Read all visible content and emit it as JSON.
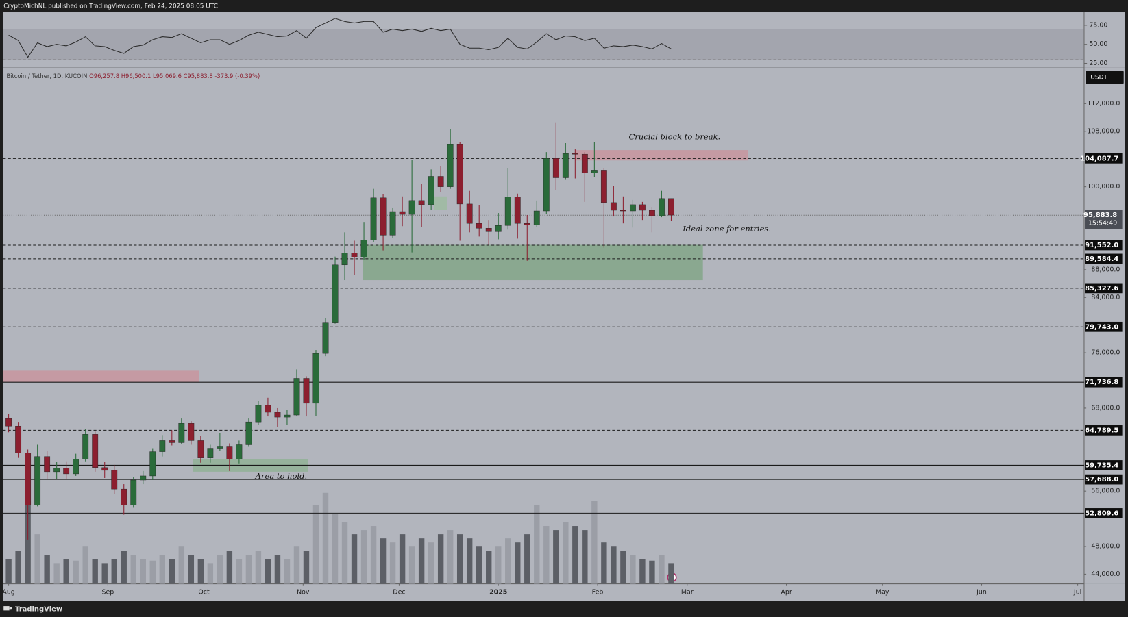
{
  "header": {
    "publisher": "CryptoMichNL published on TradingView.com, Feb 24, 2025 08:05 UTC",
    "footer": "TradingView"
  },
  "chart_data": [
    {
      "type": "line",
      "color": "#2b2b2b",
      "ylim": [
        19.3,
        92
      ],
      "yticks": [
        {
          "value": 25,
          "label": "25.00"
        },
        {
          "value": 50,
          "label": "50.00"
        },
        {
          "value": 75,
          "label": "75.00"
        }
      ],
      "bands": [
        30,
        70
      ],
      "values": [
        62,
        55,
        33,
        52,
        47,
        50,
        48,
        53,
        60,
        48,
        47,
        42,
        38,
        47,
        49,
        56,
        60,
        59,
        64,
        58,
        52,
        56,
        56,
        50,
        55,
        62,
        66,
        63,
        60,
        61,
        68,
        58,
        72,
        78,
        84,
        80,
        78,
        80,
        80,
        66,
        70,
        68,
        70,
        67,
        71,
        68,
        70,
        50,
        45,
        45,
        43,
        46,
        58,
        46,
        44,
        53,
        64,
        56,
        61,
        60,
        55,
        58,
        45,
        48,
        47,
        49,
        47,
        44,
        51,
        44
      ]
    },
    {
      "type": "candlestick",
      "symbol": "Bitcoin / Tether, 1D, KUCOIN",
      "ohlc_label": "O96,257.8 H96,500.1 L95,069.6 C95,883.8 -373.9 (-0.39%)",
      "currency": "USDT",
      "up_color": "#2a6b3a",
      "down_color": "#8c1f2f",
      "xlim": [
        -1.8,
        336
      ],
      "ylim": [
        42600,
        117100
      ],
      "xticks": [
        {
          "value": 0,
          "label": "Aug"
        },
        {
          "value": 31,
          "label": "Sep"
        },
        {
          "value": 61,
          "label": "Oct"
        },
        {
          "value": 92,
          "label": "Nov"
        },
        {
          "value": 122,
          "label": "Dec"
        },
        {
          "value": 153,
          "label": "2025"
        },
        {
          "value": 184,
          "label": "Feb"
        },
        {
          "value": 212,
          "label": "Mar"
        },
        {
          "value": 243,
          "label": "Apr"
        },
        {
          "value": 273,
          "label": "May"
        },
        {
          "value": 304,
          "label": "Jun"
        },
        {
          "value": 334,
          "label": "Jul"
        }
      ],
      "yticks": [
        {
          "value": 44000,
          "label": "44,000.0"
        },
        {
          "value": 48000,
          "label": "48,000.0"
        },
        {
          "value": 56000,
          "label": "56,000.0"
        },
        {
          "value": 68000,
          "label": "68,000.0"
        },
        {
          "value": 76000,
          "label": "76,000.0"
        },
        {
          "value": 84000,
          "label": "84,000.0"
        },
        {
          "value": 88000,
          "label": "88,000.0"
        },
        {
          "value": 100000,
          "label": "100,000.0"
        },
        {
          "value": 108000,
          "label": "108,000.0"
        },
        {
          "value": 112000,
          "label": "112,000.0"
        }
      ],
      "last_price": {
        "value": 95883.8,
        "label": "95,883.8"
      },
      "countdown": "15:54:49",
      "levels": [
        {
          "value": 104087.7,
          "label": "104,087.7",
          "style": "dashed"
        },
        {
          "value": 91552.0,
          "label": "91,552.0",
          "style": "dashed"
        },
        {
          "value": 89584.4,
          "label": "89,584.4",
          "style": "dashed"
        },
        {
          "value": 85327.6,
          "label": "85,327.6",
          "style": "dashed"
        },
        {
          "value": 79743.0,
          "label": "79,743.0",
          "style": "dashed"
        },
        {
          "value": 71736.8,
          "label": "71,736.8",
          "style": "solid"
        },
        {
          "value": 64789.5,
          "label": "64,789.5",
          "style": "dashed"
        },
        {
          "value": 59735.4,
          "label": "59,735.4",
          "style": "solid"
        },
        {
          "value": 57688.0,
          "label": "57,688.0",
          "style": "solid"
        },
        {
          "value": 52809.6,
          "label": "52,809.6",
          "style": "solid"
        }
      ],
      "zones": [
        {
          "x": [
            177,
            231
          ],
          "y": [
            103800,
            105300
          ],
          "color": "#c9949c"
        },
        {
          "x": [
            110.6,
            216.9
          ],
          "y": [
            86500,
            91600
          ],
          "color": "#7fa585"
        },
        {
          "x": [
            57.5,
            93.5
          ],
          "y": [
            58800,
            60600
          ],
          "color": "#8fb194"
        },
        {
          "x": [
            -1.8,
            59.6
          ],
          "y": [
            71700,
            73400
          ],
          "color": "#c9949c"
        },
        {
          "x": [
            133,
            137
          ],
          "y": [
            96700,
            98600
          ],
          "color": "#9cbc9f"
        }
      ],
      "annotations": [
        "Crucial block to break.",
        "Ideal zone for entries.",
        "Area to hold."
      ],
      "x": [
        0,
        3,
        6,
        9,
        12,
        15,
        18,
        21,
        24,
        27,
        30,
        33,
        36,
        39,
        42,
        45,
        48,
        51,
        54,
        57,
        60,
        63,
        66,
        69,
        72,
        75,
        78,
        81,
        84,
        87,
        90,
        93,
        96,
        99,
        102,
        105,
        108,
        111,
        114,
        117,
        120,
        123,
        126,
        129,
        132,
        135,
        138,
        141,
        144,
        147,
        150,
        153,
        156,
        159,
        162,
        165,
        168,
        171,
        174,
        177,
        180,
        183,
        186,
        189,
        192,
        195,
        198,
        201,
        204,
        207
      ],
      "open": [
        66500,
        65400,
        61500,
        54000,
        61000,
        58800,
        59300,
        58500,
        60600,
        64200,
        59400,
        59000,
        56300,
        54000,
        57600,
        58200,
        61700,
        63300,
        63000,
        65800,
        63300,
        60800,
        62200,
        62400,
        60600,
        62700,
        66000,
        68400,
        67400,
        66700,
        67000,
        72300,
        68700,
        75900,
        80400,
        88700,
        90400,
        89800,
        92300,
        98400,
        93000,
        96400,
        96000,
        98000,
        97400,
        101500,
        100000,
        106100,
        97500,
        94700,
        94000,
        93500,
        94400,
        98500,
        94700,
        94500,
        96500,
        104100,
        101300,
        104800,
        104700,
        102000,
        102400,
        97700,
        96600,
        96500,
        97400,
        96600,
        95800,
        98300
      ],
      "high": [
        67200,
        66000,
        62000,
        62700,
        61800,
        60200,
        60300,
        61400,
        65000,
        64600,
        60200,
        59800,
        57000,
        58000,
        58900,
        62200,
        64100,
        64800,
        66500,
        66100,
        64000,
        62700,
        64400,
        62900,
        63300,
        66500,
        69000,
        69500,
        68000,
        67700,
        73600,
        72600,
        76400,
        81000,
        89900,
        93400,
        92200,
        94900,
        99700,
        98900,
        96900,
        98600,
        103900,
        100400,
        102500,
        103000,
        108300,
        106500,
        99400,
        97300,
        95200,
        96200,
        102700,
        99000,
        95900,
        98000,
        105000,
        109300,
        106300,
        105400,
        105000,
        106400,
        102700,
        100100,
        98600,
        98100,
        97800,
        97100,
        99400,
        98300
      ],
      "low": [
        64500,
        60800,
        49000,
        53800,
        57800,
        57700,
        57800,
        58200,
        60300,
        58800,
        57900,
        55600,
        52600,
        53600,
        57000,
        57600,
        61000,
        62600,
        62800,
        62700,
        60100,
        60100,
        61800,
        58900,
        60000,
        62400,
        65600,
        66800,
        65300,
        65600,
        66800,
        66800,
        66900,
        75500,
        80200,
        86500,
        87200,
        89400,
        92000,
        90800,
        92600,
        94300,
        90500,
        94200,
        96700,
        99200,
        99700,
        92200,
        93400,
        92800,
        91600,
        92400,
        93800,
        92500,
        89300,
        94200,
        96100,
        99500,
        101000,
        101200,
        97800,
        101400,
        91200,
        95700,
        94700,
        94100,
        95200,
        93400,
        95600,
        95100
      ],
      "close": [
        65400,
        61500,
        54000,
        61000,
        58800,
        59300,
        58500,
        60600,
        64200,
        59400,
        59000,
        56300,
        54000,
        57600,
        58200,
        61700,
        63300,
        63000,
        65800,
        63300,
        60800,
        62200,
        62400,
        60600,
        62700,
        66000,
        68400,
        67400,
        66700,
        67000,
        72300,
        68700,
        75900,
        80400,
        88700,
        90400,
        89800,
        92300,
        98400,
        93000,
        96400,
        96000,
        98000,
        97400,
        101500,
        100000,
        106100,
        97500,
        94700,
        94000,
        93500,
        94400,
        98500,
        94700,
        94500,
        96500,
        104100,
        101300,
        104800,
        104700,
        102000,
        102400,
        97700,
        96600,
        96500,
        97400,
        96600,
        95800,
        98300,
        95900
      ]
    },
    {
      "type": "bar",
      "up_color": "#9b9ea6",
      "down_color": "#5c5f66",
      "values": [
        30,
        40,
        100,
        60,
        35,
        25,
        30,
        28,
        45,
        30,
        25,
        30,
        40,
        35,
        30,
        28,
        35,
        30,
        45,
        35,
        30,
        25,
        35,
        40,
        30,
        35,
        40,
        30,
        35,
        30,
        45,
        40,
        95,
        110,
        85,
        75,
        60,
        65,
        70,
        55,
        50,
        60,
        45,
        55,
        50,
        60,
        65,
        60,
        55,
        45,
        40,
        45,
        55,
        50,
        60,
        95,
        70,
        65,
        75,
        70,
        65,
        100,
        50,
        45,
        40,
        35,
        30,
        28,
        35,
        25
      ]
    }
  ]
}
